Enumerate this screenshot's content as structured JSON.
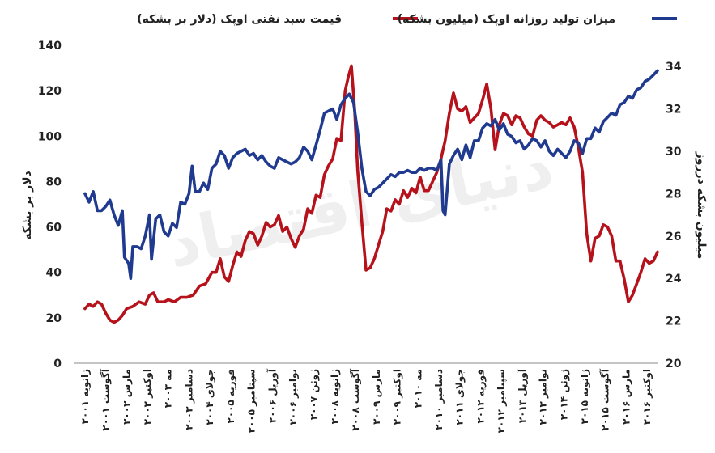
{
  "watermark": "دنیای اقتصاد",
  "chart_data": {
    "type": "line",
    "legend_position": "top",
    "grid": false,
    "left_axis": {
      "label": "دلار بر بشکه",
      "range": [
        0,
        140
      ],
      "ticks": [
        "0",
        "20",
        "40",
        "60",
        "80",
        "100",
        "120",
        "140"
      ]
    },
    "right_axis": {
      "label": "میلیون بشکه درروز",
      "range": [
        20,
        35
      ],
      "ticks": [
        "20",
        "22",
        "24",
        "26",
        "28",
        "30",
        "32",
        "34"
      ]
    },
    "x_tick_labels": [
      "ژانویه ۲۰۰۱",
      "آگوست ۲۰۰۱",
      "مارس ۲۰۰۲",
      "اوکتبر ۲۰۰۲",
      "مه ۲۰۰۳",
      "دسامبر ۲۰۰۳",
      "جولای ۲۰۰۴",
      "فوریه ۲۰۰۵",
      "سپتامبر ۲۰۰۵",
      "آوریل ۲۰۰۶",
      "نوامبر ۲۰۰۶",
      "ژوئن ۲۰۰۷",
      "ژانویه ۲۰۰۸",
      "آگوست ۲۰۰۸",
      "مارس ۲۰۰۹",
      "اوکتبر ۲۰۰۹",
      "مه ۲۰۱۰",
      "دسامبر ۲۰۱۰",
      "جولای ۲۰۱۱",
      "فوریه ۲۰۱۲",
      "سپتامبر ۲۰۱۲",
      "آوریل ۲۰۱۳",
      "نوامبر ۲۰۱۳",
      "ژوئن ۲۰۱۴",
      "ژانویه ۲۰۱۵",
      "آگوست ۲۰۱۵",
      "مارس ۲۰۱۶",
      "اوکتبر ۲۰۱۶"
    ],
    "series": [
      {
        "name": "قیمت سبد نفتی اوپک (دلار بر بشکه)",
        "color": "#b5121b",
        "axis": "left",
        "points": [
          [
            0,
            24
          ],
          [
            0.2,
            26
          ],
          [
            0.4,
            25
          ],
          [
            0.6,
            27
          ],
          [
            0.8,
            26
          ],
          [
            1.0,
            22
          ],
          [
            1.2,
            19
          ],
          [
            1.4,
            18
          ],
          [
            1.6,
            19
          ],
          [
            1.8,
            21
          ],
          [
            2.0,
            24
          ],
          [
            2.3,
            25
          ],
          [
            2.6,
            27
          ],
          [
            2.9,
            26
          ],
          [
            3.1,
            30
          ],
          [
            3.3,
            31
          ],
          [
            3.5,
            27
          ],
          [
            3.8,
            27
          ],
          [
            4.0,
            28
          ],
          [
            4.3,
            27
          ],
          [
            4.6,
            29
          ],
          [
            4.9,
            29
          ],
          [
            5.2,
            30
          ],
          [
            5.5,
            34
          ],
          [
            5.8,
            35
          ],
          [
            6.1,
            40
          ],
          [
            6.3,
            40
          ],
          [
            6.5,
            46
          ],
          [
            6.7,
            38
          ],
          [
            6.9,
            36
          ],
          [
            7.1,
            43
          ],
          [
            7.3,
            49
          ],
          [
            7.5,
            47
          ],
          [
            7.7,
            54
          ],
          [
            7.9,
            58
          ],
          [
            8.1,
            57
          ],
          [
            8.3,
            52
          ],
          [
            8.5,
            56
          ],
          [
            8.7,
            62
          ],
          [
            8.9,
            60
          ],
          [
            9.1,
            61
          ],
          [
            9.3,
            65
          ],
          [
            9.5,
            58
          ],
          [
            9.7,
            60
          ],
          [
            9.9,
            55
          ],
          [
            10.1,
            51
          ],
          [
            10.3,
            56
          ],
          [
            10.5,
            59
          ],
          [
            10.7,
            68
          ],
          [
            10.9,
            66
          ],
          [
            11.1,
            74
          ],
          [
            11.3,
            73
          ],
          [
            11.5,
            83
          ],
          [
            11.7,
            87
          ],
          [
            11.9,
            90
          ],
          [
            12.1,
            99
          ],
          [
            12.3,
            98
          ],
          [
            12.5,
            120
          ],
          [
            12.65,
            126
          ],
          [
            12.8,
            131
          ],
          [
            12.95,
            112
          ],
          [
            13.1,
            85
          ],
          [
            13.3,
            62
          ],
          [
            13.5,
            41
          ],
          [
            13.7,
            42
          ],
          [
            13.9,
            46
          ],
          [
            14.1,
            52
          ],
          [
            14.3,
            58
          ],
          [
            14.5,
            68
          ],
          [
            14.7,
            67
          ],
          [
            14.9,
            72
          ],
          [
            15.1,
            70
          ],
          [
            15.3,
            76
          ],
          [
            15.5,
            73
          ],
          [
            15.7,
            77
          ],
          [
            15.9,
            75
          ],
          [
            16.1,
            82
          ],
          [
            16.3,
            76
          ],
          [
            16.5,
            76
          ],
          [
            16.7,
            80
          ],
          [
            16.9,
            84
          ],
          [
            17.1,
            90
          ],
          [
            17.3,
            98
          ],
          [
            17.5,
            110
          ],
          [
            17.7,
            119
          ],
          [
            17.9,
            112
          ],
          [
            18.1,
            111
          ],
          [
            18.3,
            113
          ],
          [
            18.5,
            106
          ],
          [
            18.7,
            108
          ],
          [
            18.9,
            110
          ],
          [
            19.1,
            116
          ],
          [
            19.3,
            123
          ],
          [
            19.5,
            112
          ],
          [
            19.7,
            94
          ],
          [
            19.9,
            105
          ],
          [
            20.1,
            110
          ],
          [
            20.3,
            109
          ],
          [
            20.5,
            105
          ],
          [
            20.7,
            109
          ],
          [
            20.9,
            108
          ],
          [
            21.1,
            104
          ],
          [
            21.3,
            101
          ],
          [
            21.5,
            100
          ],
          [
            21.7,
            107
          ],
          [
            21.9,
            109
          ],
          [
            22.1,
            107
          ],
          [
            22.3,
            106
          ],
          [
            22.5,
            104
          ],
          [
            22.7,
            105
          ],
          [
            22.9,
            106
          ],
          [
            23.1,
            105
          ],
          [
            23.3,
            108
          ],
          [
            23.5,
            104
          ],
          [
            23.7,
            95
          ],
          [
            23.9,
            84
          ],
          [
            24.1,
            57
          ],
          [
            24.3,
            45
          ],
          [
            24.5,
            55
          ],
          [
            24.7,
            56
          ],
          [
            24.9,
            61
          ],
          [
            25.1,
            60
          ],
          [
            25.3,
            56
          ],
          [
            25.5,
            45
          ],
          [
            25.7,
            45
          ],
          [
            25.9,
            37
          ],
          [
            26.1,
            27
          ],
          [
            26.3,
            30
          ],
          [
            26.5,
            35
          ],
          [
            26.7,
            40
          ],
          [
            26.9,
            46
          ],
          [
            27.1,
            44
          ],
          [
            27.3,
            45
          ],
          [
            27.5,
            49
          ]
        ]
      },
      {
        "name": "میزان تولید روزانه اوپک (میلیون بشکه)",
        "color": "#1f3a8f",
        "axis": "right",
        "points": [
          [
            0,
            28.0
          ],
          [
            0.2,
            27.6
          ],
          [
            0.4,
            28.1
          ],
          [
            0.6,
            27.2
          ],
          [
            0.8,
            27.2
          ],
          [
            1.0,
            27.4
          ],
          [
            1.2,
            27.7
          ],
          [
            1.4,
            27.0
          ],
          [
            1.6,
            26.5
          ],
          [
            1.8,
            27.2
          ],
          [
            1.9,
            25.0
          ],
          [
            2.1,
            24.7
          ],
          [
            2.2,
            24.0
          ],
          [
            2.3,
            25.5
          ],
          [
            2.5,
            25.5
          ],
          [
            2.7,
            25.4
          ],
          [
            2.9,
            26.0
          ],
          [
            3.1,
            27.0
          ],
          [
            3.2,
            24.9
          ],
          [
            3.4,
            26.8
          ],
          [
            3.6,
            27.0
          ],
          [
            3.8,
            26.2
          ],
          [
            4.0,
            26.0
          ],
          [
            4.2,
            26.6
          ],
          [
            4.4,
            26.4
          ],
          [
            4.6,
            27.6
          ],
          [
            4.8,
            27.5
          ],
          [
            5.0,
            28.0
          ],
          [
            5.15,
            29.3
          ],
          [
            5.3,
            28.1
          ],
          [
            5.5,
            28.1
          ],
          [
            5.7,
            28.5
          ],
          [
            5.9,
            28.2
          ],
          [
            6.1,
            29.2
          ],
          [
            6.3,
            29.4
          ],
          [
            6.5,
            30.0
          ],
          [
            6.7,
            29.8
          ],
          [
            6.9,
            29.2
          ],
          [
            7.1,
            29.7
          ],
          [
            7.3,
            29.9
          ],
          [
            7.5,
            30.0
          ],
          [
            7.7,
            30.1
          ],
          [
            7.9,
            29.8
          ],
          [
            8.1,
            29.9
          ],
          [
            8.3,
            29.6
          ],
          [
            8.5,
            29.8
          ],
          [
            8.7,
            29.5
          ],
          [
            8.9,
            29.3
          ],
          [
            9.1,
            29.2
          ],
          [
            9.3,
            29.7
          ],
          [
            9.5,
            29.6
          ],
          [
            9.7,
            29.5
          ],
          [
            9.9,
            29.4
          ],
          [
            10.1,
            29.5
          ],
          [
            10.3,
            29.7
          ],
          [
            10.5,
            30.2
          ],
          [
            10.7,
            30.0
          ],
          [
            10.9,
            29.6
          ],
          [
            11.1,
            30.3
          ],
          [
            11.3,
            31.0
          ],
          [
            11.5,
            31.8
          ],
          [
            11.7,
            31.9
          ],
          [
            11.9,
            32.0
          ],
          [
            12.1,
            31.5
          ],
          [
            12.3,
            32.2
          ],
          [
            12.5,
            32.5
          ],
          [
            12.7,
            32.7
          ],
          [
            12.9,
            32.3
          ],
          [
            13.1,
            30.9
          ],
          [
            13.3,
            29.2
          ],
          [
            13.5,
            28.1
          ],
          [
            13.7,
            27.9
          ],
          [
            13.9,
            28.2
          ],
          [
            14.1,
            28.3
          ],
          [
            14.3,
            28.5
          ],
          [
            14.5,
            28.7
          ],
          [
            14.7,
            28.9
          ],
          [
            14.9,
            28.8
          ],
          [
            15.1,
            29.0
          ],
          [
            15.3,
            29.0
          ],
          [
            15.5,
            29.1
          ],
          [
            15.7,
            29.0
          ],
          [
            15.9,
            29.0
          ],
          [
            16.1,
            29.2
          ],
          [
            16.3,
            29.1
          ],
          [
            16.5,
            29.2
          ],
          [
            16.7,
            29.2
          ],
          [
            16.9,
            29.1
          ],
          [
            17.1,
            29.6
          ],
          [
            17.2,
            27.2
          ],
          [
            17.3,
            27.0
          ],
          [
            17.5,
            29.4
          ],
          [
            17.7,
            29.8
          ],
          [
            17.9,
            30.1
          ],
          [
            18.1,
            29.6
          ],
          [
            18.3,
            30.3
          ],
          [
            18.5,
            29.7
          ],
          [
            18.7,
            30.5
          ],
          [
            18.9,
            30.5
          ],
          [
            19.1,
            31.1
          ],
          [
            19.3,
            31.3
          ],
          [
            19.5,
            31.2
          ],
          [
            19.7,
            31.5
          ],
          [
            19.9,
            31.0
          ],
          [
            20.1,
            31.3
          ],
          [
            20.3,
            30.8
          ],
          [
            20.5,
            30.7
          ],
          [
            20.7,
            30.4
          ],
          [
            20.9,
            30.5
          ],
          [
            21.1,
            30.1
          ],
          [
            21.3,
            30.3
          ],
          [
            21.5,
            30.6
          ],
          [
            21.7,
            30.5
          ],
          [
            21.9,
            30.2
          ],
          [
            22.1,
            30.5
          ],
          [
            22.3,
            30.0
          ],
          [
            22.5,
            29.8
          ],
          [
            22.7,
            30.1
          ],
          [
            22.9,
            29.9
          ],
          [
            23.1,
            29.7
          ],
          [
            23.3,
            30.0
          ],
          [
            23.5,
            30.5
          ],
          [
            23.7,
            30.4
          ],
          [
            23.9,
            29.9
          ],
          [
            24.1,
            30.6
          ],
          [
            24.3,
            30.6
          ],
          [
            24.5,
            31.1
          ],
          [
            24.7,
            30.9
          ],
          [
            24.9,
            31.4
          ],
          [
            25.1,
            31.6
          ],
          [
            25.3,
            31.8
          ],
          [
            25.5,
            31.7
          ],
          [
            25.7,
            32.2
          ],
          [
            25.9,
            32.3
          ],
          [
            26.1,
            32.6
          ],
          [
            26.3,
            32.5
          ],
          [
            26.5,
            32.9
          ],
          [
            26.7,
            33.0
          ],
          [
            26.9,
            33.3
          ],
          [
            27.1,
            33.4
          ],
          [
            27.3,
            33.6
          ],
          [
            27.5,
            33.8
          ]
        ]
      }
    ]
  }
}
